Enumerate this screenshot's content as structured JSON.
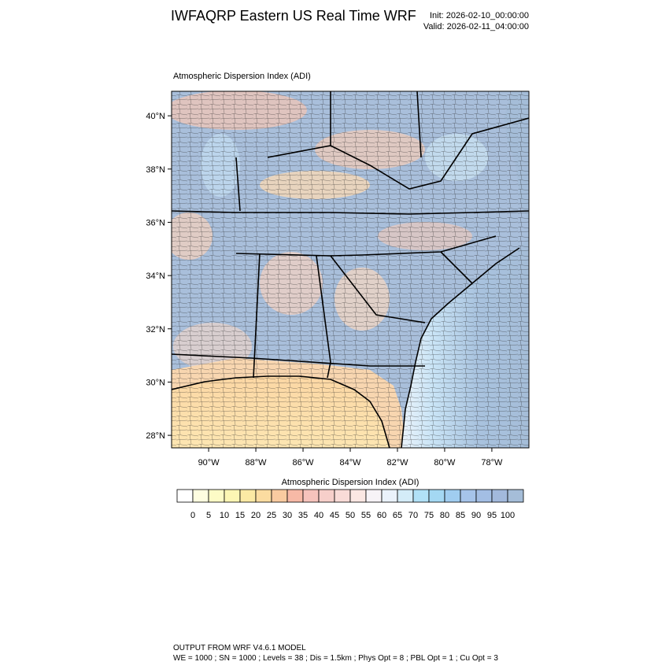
{
  "title": "IWFAQRP Eastern US Real Time WRF",
  "init": "Init: 2026-02-10_00:00:00",
  "valid": "Valid: 2026-02-11_04:00:00",
  "map": {
    "title": "Atmospheric Dispersion Index   (ADI)",
    "xlim": [
      -91.57,
      -76.43
    ],
    "ylim": [
      27.53,
      40.92
    ],
    "xticks": [
      {
        "value": -90,
        "label": "90°W"
      },
      {
        "value": -88,
        "label": "88°W"
      },
      {
        "value": -86,
        "label": "86°W"
      },
      {
        "value": -84,
        "label": "84°W"
      },
      {
        "value": -82,
        "label": "82°W"
      },
      {
        "value": -80,
        "label": "80°W"
      },
      {
        "value": -78,
        "label": "78°W"
      }
    ],
    "yticks": [
      {
        "value": 28,
        "label": "28°N"
      },
      {
        "value": 30,
        "label": "30°N"
      },
      {
        "value": 32,
        "label": "32°N"
      },
      {
        "value": 34,
        "label": "34°N"
      },
      {
        "value": 36,
        "label": "36°N"
      },
      {
        "value": 38,
        "label": "38°N"
      },
      {
        "value": 40,
        "label": "40°N"
      }
    ]
  },
  "colorbar": {
    "title": "Atmospheric Dispersion Index  (ADI)",
    "levels": [
      0,
      5,
      10,
      15,
      20,
      25,
      30,
      35,
      40,
      45,
      50,
      55,
      60,
      65,
      70,
      75,
      80,
      85,
      90,
      95,
      100
    ],
    "colors": [
      "#ffffff",
      "#fefde0",
      "#fdfbc6",
      "#fcf6b4",
      "#fbe9a4",
      "#fbdca0",
      "#f9cba0",
      "#f7b9a6",
      "#f6c3bc",
      "#f7cfca",
      "#f9dbd7",
      "#fbe7e3",
      "#f7f3f7",
      "#eaf2fb",
      "#d4ecf8",
      "#b1e1f7",
      "#a4d8f3",
      "#a0cdf0",
      "#a6c4ea",
      "#a3bee4",
      "#a2b9dc",
      "#a5bdd8"
    ]
  },
  "footer": [
    "OUTPUT FROM WRF V4.6.1 MODEL",
    "WE = 1000 ; SN = 1000 ; Levels = 38 ; Dis = 1.5km ; Phys Opt = 8 ; PBL Opt = 1 ; Cu Opt = 3"
  ]
}
